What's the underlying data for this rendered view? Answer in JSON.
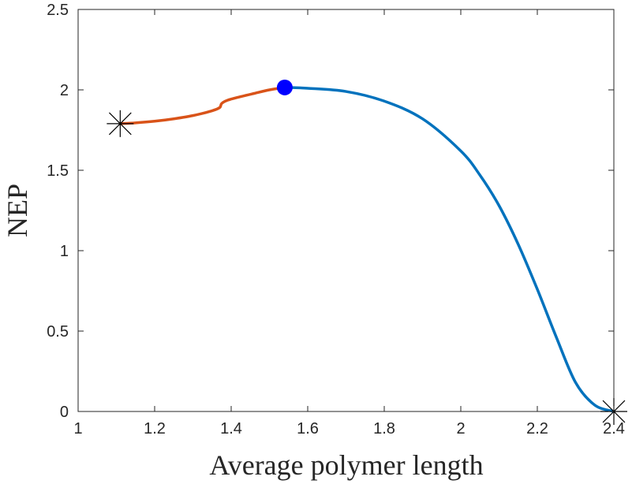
{
  "chart_data": {
    "type": "line",
    "xlabel": "Average polymer length",
    "ylabel": "NEP",
    "xlim": [
      1,
      2.4
    ],
    "ylim": [
      0,
      2.5
    ],
    "xticks": [
      "1",
      "1.2",
      "1.4",
      "1.6",
      "1.8",
      "2",
      "2.2",
      "2.4"
    ],
    "yticks": [
      "0",
      "0.5",
      "1",
      "1.5",
      "2",
      "2.5"
    ],
    "grid": false,
    "box": true,
    "series": [
      {
        "color": "#D95319",
        "x": [
          1.11,
          1.15,
          1.2,
          1.25,
          1.3,
          1.35,
          1.37,
          1.375,
          1.39,
          1.42,
          1.46,
          1.5,
          1.54
        ],
        "y": [
          1.79,
          1.795,
          1.805,
          1.82,
          1.84,
          1.87,
          1.89,
          1.915,
          1.935,
          1.955,
          1.978,
          2.0,
          2.015
        ]
      },
      {
        "color": "#0072BD",
        "x": [
          1.54,
          1.6,
          1.7,
          1.8,
          1.9,
          2.0,
          2.05,
          2.1,
          2.15,
          2.2,
          2.25,
          2.3,
          2.35,
          2.4
        ],
        "y": [
          2.015,
          2.01,
          1.99,
          1.93,
          1.82,
          1.62,
          1.47,
          1.28,
          1.04,
          0.76,
          0.46,
          0.18,
          0.04,
          0.0
        ]
      }
    ],
    "markers": [
      {
        "shape": "asterisk",
        "x": 1.11,
        "y": 1.79,
        "color": "#000000"
      },
      {
        "shape": "filled-circle",
        "x": 1.54,
        "y": 2.015,
        "color": "#0000FF"
      },
      {
        "shape": "asterisk",
        "x": 2.4,
        "y": 0.0,
        "color": "#000000"
      }
    ]
  }
}
